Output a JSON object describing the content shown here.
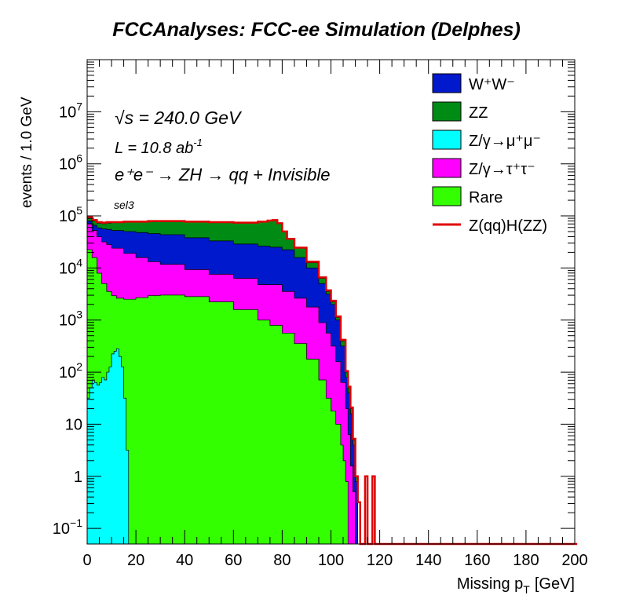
{
  "chart_data": {
    "type": "area",
    "title": "FCCAnalyses: FCC-ee Simulation (Delphes)",
    "xlabel": "Missing p",
    "xlabel_sub": "T",
    "xlabel_unit": "[GeV]",
    "ylabel": "events / 1.0 GeV",
    "xlim": [
      0,
      200
    ],
    "ylim_log10": [
      -1.3,
      8
    ],
    "y_scale": "log",
    "x_ticks": [
      0,
      20,
      40,
      60,
      80,
      100,
      120,
      140,
      160,
      180,
      200
    ],
    "x_tick_labels": [
      "0",
      "20",
      "40",
      "60",
      "80",
      "100",
      "120",
      "140",
      "160",
      "180",
      "200"
    ],
    "annotations": {
      "sqrt_s": "√s = 240.0 GeV",
      "lumi": "L = 10.8 ab",
      "lumi_exp": "-1",
      "process": "e⁺e⁻ → ZH → qq + Invisible",
      "selection": "sel3"
    },
    "legend": {
      "placement": "top-right",
      "entries": [
        {
          "label": "W⁺W⁻",
          "color": "#0019cc"
        },
        {
          "label": "ZZ",
          "color": "#008c14"
        },
        {
          "label": "Z/γ→μ⁺μ⁻",
          "color": "#00ffff"
        },
        {
          "label": "Z/γ→τ⁺τ⁻",
          "color": "#ff00ff"
        },
        {
          "label": "Rare",
          "color": "#33ff00"
        },
        {
          "label": "Z(qq)H(ZZ)",
          "color": "#e00000",
          "style": "line"
        }
      ]
    },
    "series": [
      {
        "name": "Z/γ→μ⁺μ⁻",
        "color": "#00ffff",
        "log10_points": [
          [
            0,
            1.5
          ],
          [
            1,
            1.7
          ],
          [
            2,
            1.85
          ],
          [
            3,
            1.8
          ],
          [
            4,
            1.75
          ],
          [
            5,
            1.8
          ],
          [
            6,
            1.9
          ],
          [
            7,
            1.85
          ],
          [
            8,
            2.0
          ],
          [
            9,
            2.1
          ],
          [
            10,
            2.35
          ],
          [
            11,
            2.4
          ],
          [
            12,
            2.45
          ],
          [
            13,
            2.3
          ],
          [
            14,
            2.1
          ],
          [
            15,
            1.5
          ],
          [
            16,
            0.5
          ],
          [
            17,
            -1.3
          ],
          [
            18,
            -1.3
          ]
        ]
      },
      {
        "name": "Rare",
        "color": "#33ff00",
        "log10_points": [
          [
            0,
            4.35
          ],
          [
            2,
            4.2
          ],
          [
            4,
            3.9
          ],
          [
            6,
            3.7
          ],
          [
            8,
            3.55
          ],
          [
            10,
            3.47
          ],
          [
            12,
            3.42
          ],
          [
            15,
            3.4
          ],
          [
            20,
            3.43
          ],
          [
            25,
            3.47
          ],
          [
            30,
            3.48
          ],
          [
            40,
            3.45
          ],
          [
            50,
            3.35
          ],
          [
            60,
            3.2
          ],
          [
            70,
            3.0
          ],
          [
            75,
            2.9
          ],
          [
            80,
            2.75
          ],
          [
            85,
            2.55
          ],
          [
            90,
            2.25
          ],
          [
            95,
            1.85
          ],
          [
            98,
            1.5
          ],
          [
            100,
            1.25
          ],
          [
            102,
            1.0
          ],
          [
            104,
            0.6
          ],
          [
            105,
            0.3
          ],
          [
            106,
            -0.1
          ],
          [
            107,
            -1.3
          ]
        ]
      },
      {
        "name": "Z/γ→τ⁺τ⁻",
        "color": "#ff00ff",
        "log10_points": [
          [
            0,
            4.85
          ],
          [
            2,
            4.72
          ],
          [
            4,
            4.6
          ],
          [
            6,
            4.5
          ],
          [
            8,
            4.45
          ],
          [
            10,
            4.38
          ],
          [
            15,
            4.28
          ],
          [
            20,
            4.2
          ],
          [
            25,
            4.12
          ],
          [
            30,
            4.07
          ],
          [
            40,
            3.97
          ],
          [
            50,
            3.88
          ],
          [
            60,
            3.8
          ],
          [
            70,
            3.68
          ],
          [
            80,
            3.55
          ],
          [
            85,
            3.42
          ],
          [
            90,
            3.25
          ],
          [
            95,
            2.95
          ],
          [
            98,
            2.75
          ],
          [
            100,
            2.5
          ],
          [
            102,
            2.2
          ],
          [
            104,
            1.8
          ],
          [
            106,
            1.3
          ],
          [
            107,
            0.8
          ],
          [
            108,
            0.2
          ],
          [
            109,
            -0.3
          ],
          [
            110,
            -1.3
          ]
        ]
      },
      {
        "name": "W⁺W⁻",
        "color": "#0019cc",
        "log10_points": [
          [
            0,
            4.9
          ],
          [
            2,
            4.82
          ],
          [
            4,
            4.77
          ],
          [
            6,
            4.75
          ],
          [
            8,
            4.74
          ],
          [
            10,
            4.72
          ],
          [
            15,
            4.7
          ],
          [
            20,
            4.68
          ],
          [
            25,
            4.66
          ],
          [
            30,
            4.64
          ],
          [
            40,
            4.58
          ],
          [
            50,
            4.52
          ],
          [
            60,
            4.46
          ],
          [
            70,
            4.42
          ],
          [
            75,
            4.4
          ],
          [
            80,
            4.35
          ],
          [
            85,
            4.2
          ],
          [
            90,
            4.0
          ],
          [
            95,
            3.7
          ],
          [
            98,
            3.5
          ],
          [
            100,
            3.3
          ],
          [
            102,
            3.0
          ],
          [
            104,
            2.5
          ],
          [
            106,
            1.9
          ],
          [
            107,
            1.6
          ],
          [
            108,
            1.2
          ],
          [
            109,
            0.6
          ],
          [
            110,
            -0.1
          ],
          [
            111,
            -1.3
          ]
        ]
      },
      {
        "name": "ZZ",
        "color": "#008c14",
        "log10_points": [
          [
            0,
            4.95
          ],
          [
            2,
            4.9
          ],
          [
            4,
            4.86
          ],
          [
            6,
            4.85
          ],
          [
            8,
            4.86
          ],
          [
            10,
            4.87
          ],
          [
            15,
            4.88
          ],
          [
            20,
            4.88
          ],
          [
            25,
            4.89
          ],
          [
            30,
            4.89
          ],
          [
            40,
            4.88
          ],
          [
            50,
            4.87
          ],
          [
            60,
            4.86
          ],
          [
            65,
            4.86
          ],
          [
            70,
            4.88
          ],
          [
            74,
            4.9
          ],
          [
            76,
            4.92
          ],
          [
            78,
            4.85
          ],
          [
            80,
            4.7
          ],
          [
            82,
            4.55
          ],
          [
            85,
            4.38
          ],
          [
            90,
            4.1
          ],
          [
            95,
            3.8
          ],
          [
            98,
            3.55
          ],
          [
            100,
            3.35
          ],
          [
            102,
            3.05
          ],
          [
            104,
            2.6
          ],
          [
            106,
            2.0
          ],
          [
            107,
            1.7
          ],
          [
            108,
            1.3
          ],
          [
            109,
            0.7
          ],
          [
            110,
            0.0
          ],
          [
            111,
            -1.3
          ]
        ]
      }
    ],
    "signal_line": {
      "name": "Z(qq)H(ZZ)",
      "color": "#e00000",
      "log10_points": [
        [
          0,
          4.98
        ],
        [
          2,
          4.92
        ],
        [
          4,
          4.88
        ],
        [
          6,
          4.87
        ],
        [
          8,
          4.88
        ],
        [
          10,
          4.88
        ],
        [
          15,
          4.89
        ],
        [
          20,
          4.89
        ],
        [
          25,
          4.9
        ],
        [
          30,
          4.9
        ],
        [
          40,
          4.89
        ],
        [
          50,
          4.88
        ],
        [
          60,
          4.87
        ],
        [
          65,
          4.87
        ],
        [
          70,
          4.89
        ],
        [
          74,
          4.91
        ],
        [
          76,
          4.92
        ],
        [
          78,
          4.86
        ],
        [
          80,
          4.7
        ],
        [
          82,
          4.56
        ],
        [
          85,
          4.39
        ],
        [
          90,
          4.12
        ],
        [
          95,
          3.82
        ],
        [
          98,
          3.57
        ],
        [
          100,
          3.37
        ],
        [
          102,
          3.07
        ],
        [
          104,
          2.62
        ],
        [
          106,
          2.02
        ],
        [
          107,
          1.72
        ],
        [
          108,
          1.32
        ],
        [
          109,
          0.72
        ],
        [
          110,
          0.0
        ],
        [
          111,
          -0.5
        ],
        [
          112,
          -1.3
        ],
        [
          113,
          -1.3
        ],
        [
          114,
          0.0
        ],
        [
          115,
          -1.3
        ],
        [
          116,
          -1.3
        ],
        [
          117,
          0.0
        ],
        [
          118,
          -1.3
        ],
        [
          200,
          -1.3
        ]
      ]
    }
  }
}
